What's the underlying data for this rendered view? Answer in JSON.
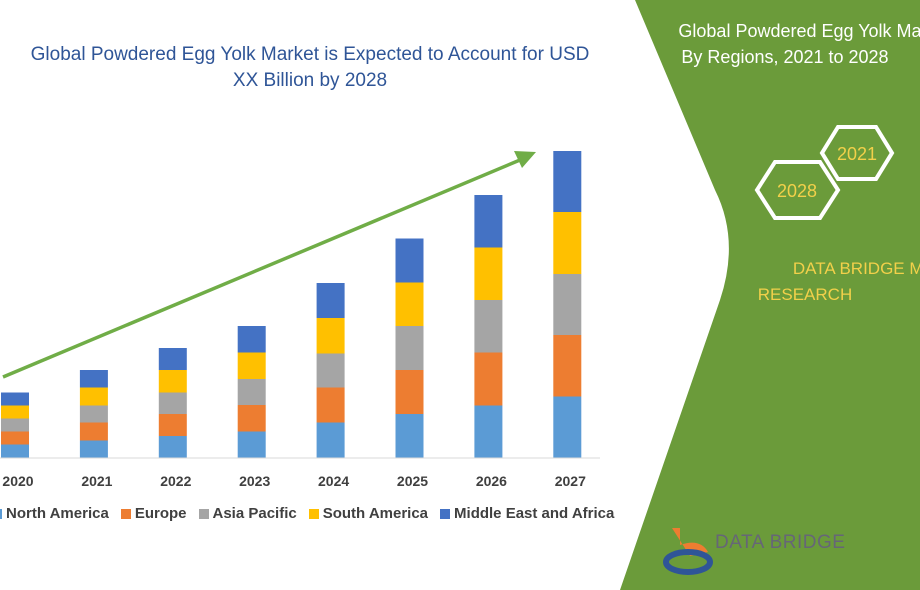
{
  "title": "Global Powdered Egg Yolk Market is Expected to Account for USD XX Billion by 2028",
  "panel": {
    "title_line1": "Global Powdered Egg Yolk Ma",
    "title_line2": "By Regions, 2021 to 2028",
    "hex_a": "2021",
    "hex_b": "2028",
    "brand_line1": "DATA BRIDGE MAR",
    "brand_line2": "RESEARCH",
    "logo_text": "DATA BRIDGE",
    "color": "#6b9b3a"
  },
  "chart_data": {
    "type": "bar",
    "stacked": true,
    "categories": [
      "2020",
      "2021",
      "2022",
      "2023",
      "2024",
      "2025",
      "2026",
      "2027"
    ],
    "series": [
      {
        "name": "North America",
        "color": "#5b9bd5",
        "values": [
          13.5,
          17.5,
          22,
          26.5,
          35.5,
          44,
          52.5,
          61.5
        ]
      },
      {
        "name": "Europe",
        "color": "#ed7d31",
        "values": [
          13,
          18,
          22,
          26.5,
          35,
          44,
          53,
          61.5
        ]
      },
      {
        "name": "Asia Pacific",
        "color": "#a5a5a5",
        "values": [
          13,
          17,
          21.5,
          26,
          34,
          44,
          52.5,
          61
        ]
      },
      {
        "name": "South America",
        "color": "#ffc000",
        "values": [
          13,
          18,
          22.5,
          26.5,
          35.5,
          43.5,
          52.5,
          62
        ]
      },
      {
        "name": "Middle East and Africa",
        "color": "#4472c4",
        "values": [
          13,
          17.5,
          22,
          26.5,
          35,
          44,
          52.5,
          61
        ]
      }
    ],
    "trend_arrow_color": "#70ad47",
    "legend_position": "bottom",
    "grid": false
  }
}
